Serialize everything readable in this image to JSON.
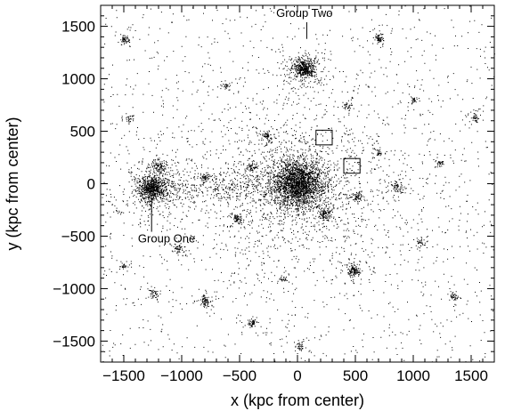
{
  "chart_data": {
    "type": "scatter",
    "title": "",
    "xlabel": "x (kpc from center)",
    "ylabel": "y (kpc from center)",
    "xlim": [
      -1700,
      1700
    ],
    "ylim": [
      -1700,
      1700
    ],
    "xticks": [
      -1500,
      -1000,
      -500,
      0,
      500,
      1000,
      1500
    ],
    "yticks": [
      -1500,
      -1000,
      -500,
      0,
      500,
      1000,
      1500
    ],
    "xtick_labels": [
      "−1500",
      "−1000",
      "−500",
      "0",
      "500",
      "1000",
      "1500"
    ],
    "ytick_labels": [
      "−1500",
      "−1000",
      "−500",
      "0",
      "500",
      "1000",
      "1500"
    ],
    "grid": false,
    "marker_color": "#000000",
    "clusters": [
      {
        "name": "central",
        "x": 0,
        "y": 0,
        "spread": 110,
        "count": 2600
      },
      {
        "name": "Group One",
        "x": -1260,
        "y": -40,
        "spread": 60,
        "count": 900
      },
      {
        "name": "Group Two",
        "x": 60,
        "y": 1100,
        "spread": 45,
        "count": 550
      },
      {
        "x": 480,
        "y": -820,
        "spread": 28,
        "count": 160
      },
      {
        "x": -1490,
        "y": 1380,
        "spread": 18,
        "count": 70
      },
      {
        "x": 700,
        "y": 1390,
        "spread": 18,
        "count": 70
      },
      {
        "x": -1190,
        "y": 170,
        "spread": 30,
        "count": 110
      },
      {
        "x": -800,
        "y": -1110,
        "spread": 25,
        "count": 90
      },
      {
        "x": -390,
        "y": -1320,
        "spread": 20,
        "count": 60
      },
      {
        "x": 860,
        "y": -30,
        "spread": 25,
        "count": 70
      },
      {
        "x": 240,
        "y": -280,
        "spread": 30,
        "count": 110
      },
      {
        "x": -520,
        "y": -330,
        "spread": 22,
        "count": 70
      },
      {
        "x": 1530,
        "y": 640,
        "spread": 18,
        "count": 45
      },
      {
        "x": 1350,
        "y": -1080,
        "spread": 18,
        "count": 45
      },
      {
        "x": -1250,
        "y": -1040,
        "spread": 20,
        "count": 45
      },
      {
        "x": 520,
        "y": -120,
        "spread": 25,
        "count": 80
      },
      {
        "x": -260,
        "y": 460,
        "spread": 25,
        "count": 65
      },
      {
        "x": 20,
        "y": -1540,
        "spread": 18,
        "count": 40
      },
      {
        "x": -1030,
        "y": -620,
        "spread": 22,
        "count": 55
      },
      {
        "x": -800,
        "y": 60,
        "spread": 20,
        "count": 55
      },
      {
        "x": -400,
        "y": 160,
        "spread": 22,
        "count": 55
      },
      {
        "x": 1070,
        "y": -560,
        "spread": 18,
        "count": 40
      },
      {
        "x": 420,
        "y": 740,
        "spread": 15,
        "count": 30
      },
      {
        "x": -1450,
        "y": 620,
        "spread": 15,
        "count": 30
      },
      {
        "x": -620,
        "y": 930,
        "spread": 15,
        "count": 30
      },
      {
        "x": 1000,
        "y": 800,
        "spread": 15,
        "count": 30
      },
      {
        "x": -120,
        "y": -900,
        "spread": 15,
        "count": 30
      },
      {
        "x": 700,
        "y": 300,
        "spread": 15,
        "count": 30
      },
      {
        "x": -1500,
        "y": -780,
        "spread": 15,
        "count": 30
      },
      {
        "x": 1230,
        "y": 200,
        "spread": 15,
        "count": 30
      }
    ],
    "background_points": 2400,
    "bridge": {
      "x": [
        -1250,
        0
      ],
      "y": [
        -40,
        0
      ],
      "count": 500
    },
    "boxes": [
      {
        "x": 230,
        "y": 440,
        "size": 140
      },
      {
        "x": 470,
        "y": 170,
        "size": 140
      }
    ],
    "annotations": [
      {
        "text": "Group Two",
        "point_x": 80,
        "point_y": 1380,
        "text_x": 60,
        "text_y": 1590
      },
      {
        "text": "Group One",
        "point_x": -1260,
        "point_y": -130,
        "text_x": -1130,
        "text_y": -560
      }
    ]
  }
}
